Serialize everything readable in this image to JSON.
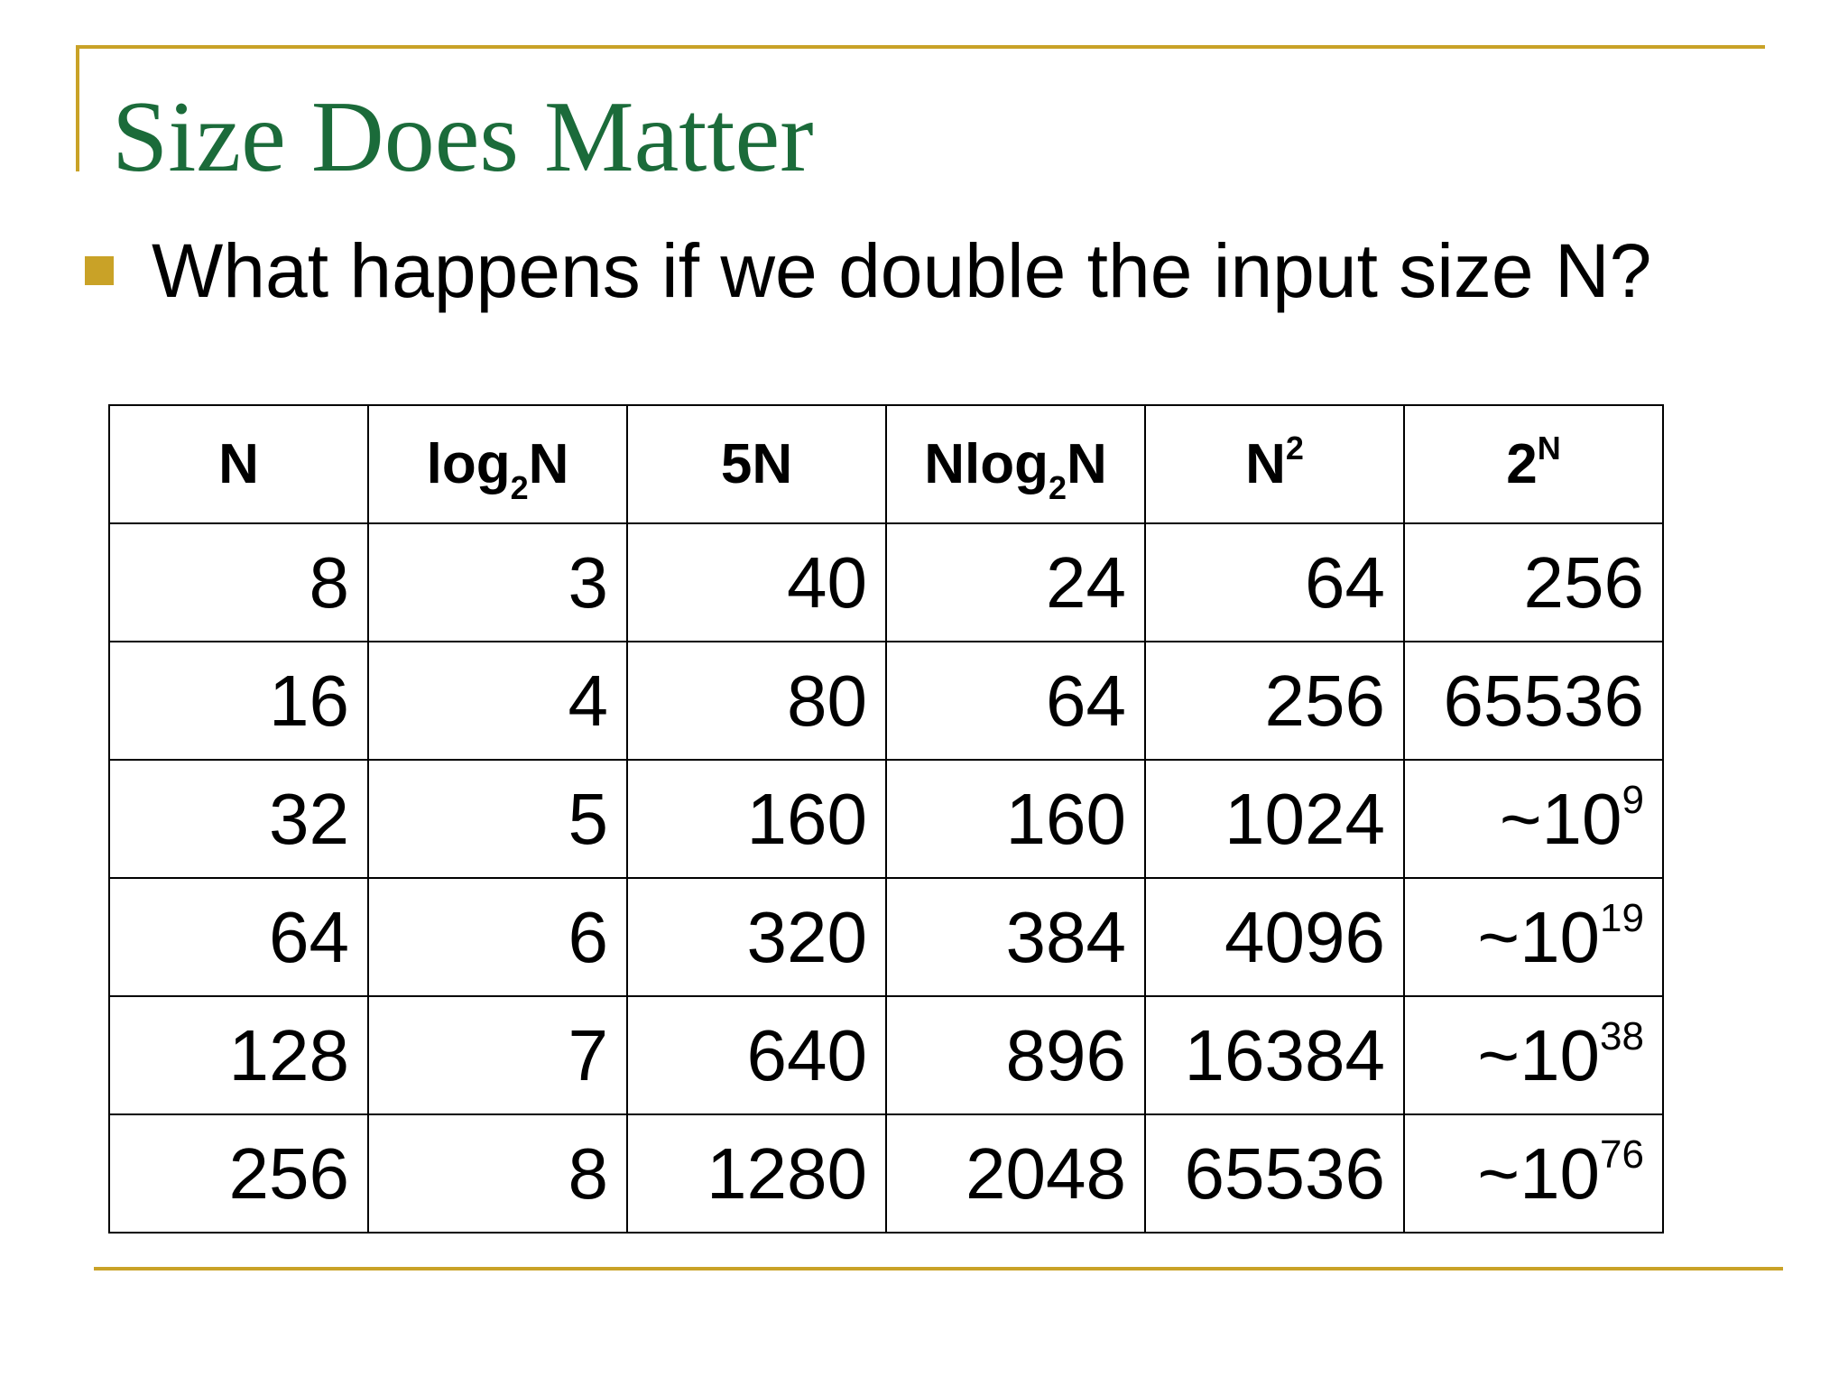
{
  "slide": {
    "title": "Size Does Matter",
    "bullet": "What happens if we double the input size N?"
  },
  "table": {
    "headers": [
      {
        "base": "N",
        "sub": "",
        "tail": "",
        "sup": ""
      },
      {
        "base": "log",
        "sub": "2",
        "tail": "N",
        "sup": ""
      },
      {
        "base": "5N",
        "sub": "",
        "tail": "",
        "sup": ""
      },
      {
        "base": "Nlog",
        "sub": "2",
        "tail": "N",
        "sup": ""
      },
      {
        "base": "N",
        "sub": "",
        "tail": "",
        "sup": "2"
      },
      {
        "base": "2",
        "sub": "",
        "tail": "",
        "sup": "N"
      }
    ],
    "rows": [
      [
        {
          "v": "8",
          "e": ""
        },
        {
          "v": "3",
          "e": ""
        },
        {
          "v": "40",
          "e": ""
        },
        {
          "v": "24",
          "e": ""
        },
        {
          "v": "64",
          "e": ""
        },
        {
          "v": "256",
          "e": ""
        }
      ],
      [
        {
          "v": "16",
          "e": ""
        },
        {
          "v": "4",
          "e": ""
        },
        {
          "v": "80",
          "e": ""
        },
        {
          "v": "64",
          "e": ""
        },
        {
          "v": "256",
          "e": ""
        },
        {
          "v": "65536",
          "e": ""
        }
      ],
      [
        {
          "v": "32",
          "e": ""
        },
        {
          "v": "5",
          "e": ""
        },
        {
          "v": "160",
          "e": ""
        },
        {
          "v": "160",
          "e": ""
        },
        {
          "v": "1024",
          "e": ""
        },
        {
          "v": "~10",
          "e": "9"
        }
      ],
      [
        {
          "v": "64",
          "e": ""
        },
        {
          "v": "6",
          "e": ""
        },
        {
          "v": "320",
          "e": ""
        },
        {
          "v": "384",
          "e": ""
        },
        {
          "v": "4096",
          "e": ""
        },
        {
          "v": "~10",
          "e": "19"
        }
      ],
      [
        {
          "v": "128",
          "e": ""
        },
        {
          "v": "7",
          "e": ""
        },
        {
          "v": "640",
          "e": ""
        },
        {
          "v": "896",
          "e": ""
        },
        {
          "v": "16384",
          "e": ""
        },
        {
          "v": "~10",
          "e": "38"
        }
      ],
      [
        {
          "v": "256",
          "e": ""
        },
        {
          "v": "8",
          "e": ""
        },
        {
          "v": "1280",
          "e": ""
        },
        {
          "v": "2048",
          "e": ""
        },
        {
          "v": "65536",
          "e": ""
        },
        {
          "v": "~10",
          "e": "76"
        }
      ]
    ]
  },
  "colors": {
    "accent": "#c9a227",
    "title": "#1b6b3a",
    "text": "#000000"
  }
}
